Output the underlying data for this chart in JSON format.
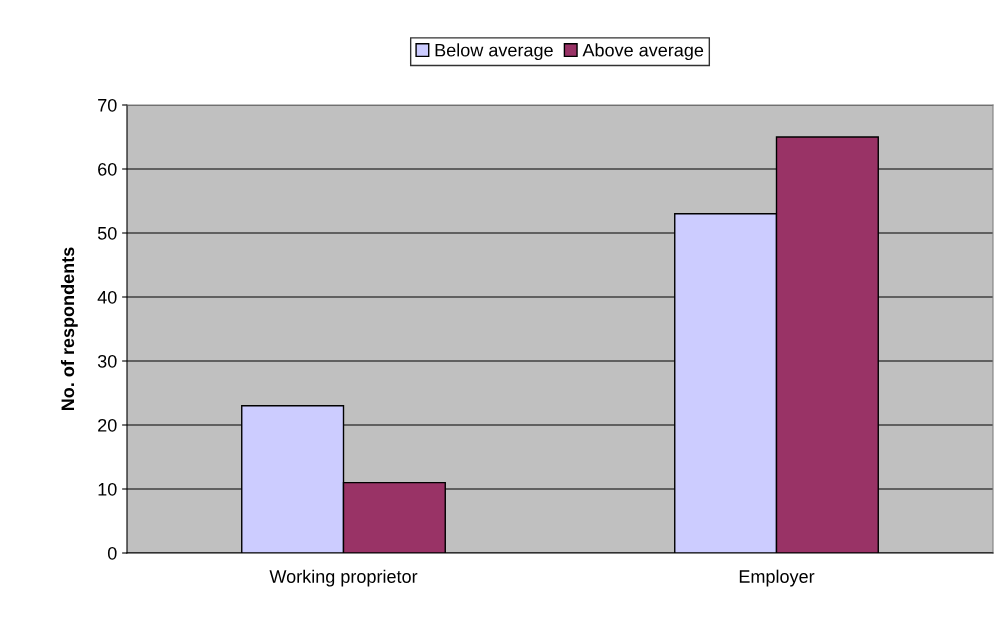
{
  "chart_data": {
    "type": "bar",
    "ylabel": "No. of respondents",
    "categories": [
      "Working proprietor",
      "Employer"
    ],
    "series": [
      {
        "name": "Below average",
        "color": "#ccccff",
        "values": [
          23,
          53
        ]
      },
      {
        "name": "Above average",
        "color": "#993366",
        "values": [
          11,
          65
        ]
      }
    ],
    "ylim": [
      0,
      70
    ],
    "yticks": [
      0,
      10,
      20,
      30,
      40,
      50,
      60,
      70
    ],
    "grid": "y",
    "legend": "top"
  }
}
